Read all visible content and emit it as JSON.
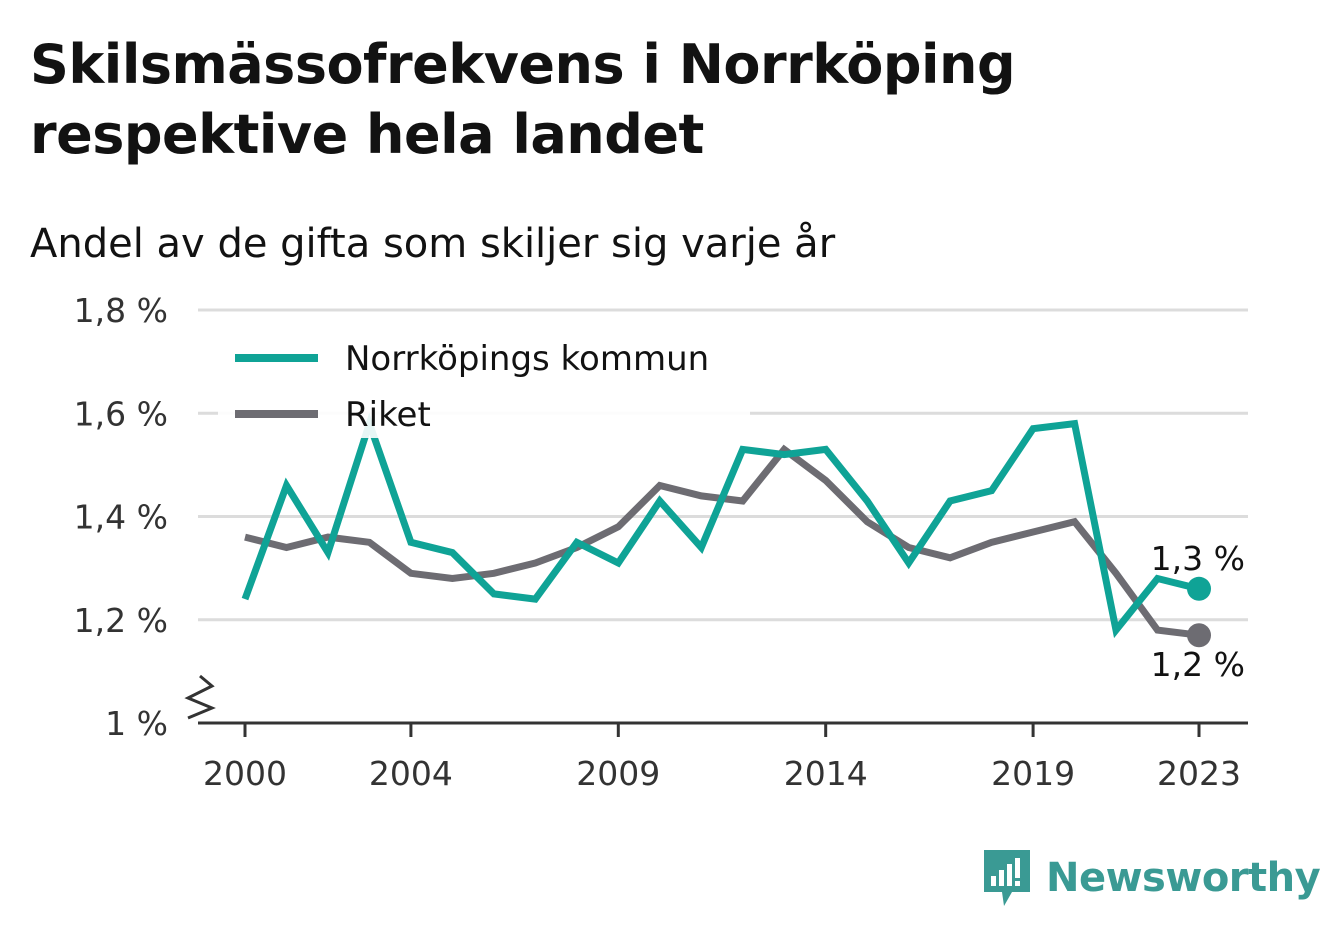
{
  "header": {
    "title": "Skilsmässofrekvens i Norrköping respektive hela landet",
    "subtitle": "Andel av de gifta som skiljer sig varje år"
  },
  "brand": {
    "name": "Newsworthy",
    "color": "#3a9a94",
    "icon": "newsworthy-logo-icon"
  },
  "chart_data": {
    "type": "line",
    "x": [
      2000,
      2001,
      2002,
      2003,
      2004,
      2005,
      2006,
      2007,
      2008,
      2009,
      2010,
      2011,
      2012,
      2013,
      2014,
      2015,
      2016,
      2017,
      2018,
      2019,
      2020,
      2021,
      2022,
      2023
    ],
    "series": [
      {
        "name": "Norrköpings kommun",
        "color": "#0fa396",
        "values": [
          1.24,
          1.46,
          1.33,
          1.58,
          1.35,
          1.33,
          1.25,
          1.24,
          1.35,
          1.31,
          1.43,
          1.34,
          1.53,
          1.52,
          1.53,
          1.43,
          1.31,
          1.43,
          1.45,
          1.57,
          1.58,
          1.18,
          1.28,
          1.26
        ],
        "end_label": "1,3 %"
      },
      {
        "name": "Riket",
        "color": "#6d6c72",
        "values": [
          1.36,
          1.34,
          1.36,
          1.35,
          1.29,
          1.28,
          1.29,
          1.31,
          1.34,
          1.38,
          1.46,
          1.44,
          1.43,
          1.53,
          1.47,
          1.39,
          1.34,
          1.32,
          1.35,
          1.37,
          1.39,
          1.29,
          1.18,
          1.17
        ],
        "end_label": "1,2 %"
      }
    ],
    "ylim": [
      1.0,
      1.8
    ],
    "yticks": [
      1.0,
      1.2,
      1.4,
      1.6,
      1.8
    ],
    "ytick_labels": [
      "1 %",
      "1,2 %",
      "1,4 %",
      "1,6 %",
      "1,8 %"
    ],
    "xticks": [
      2000,
      2004,
      2009,
      2014,
      2019,
      2023
    ],
    "xtick_labels": [
      "2000",
      "2004",
      "2009",
      "2014",
      "2019",
      "2023"
    ],
    "grid": true,
    "legend_position": "top-left",
    "axis_break": true
  }
}
